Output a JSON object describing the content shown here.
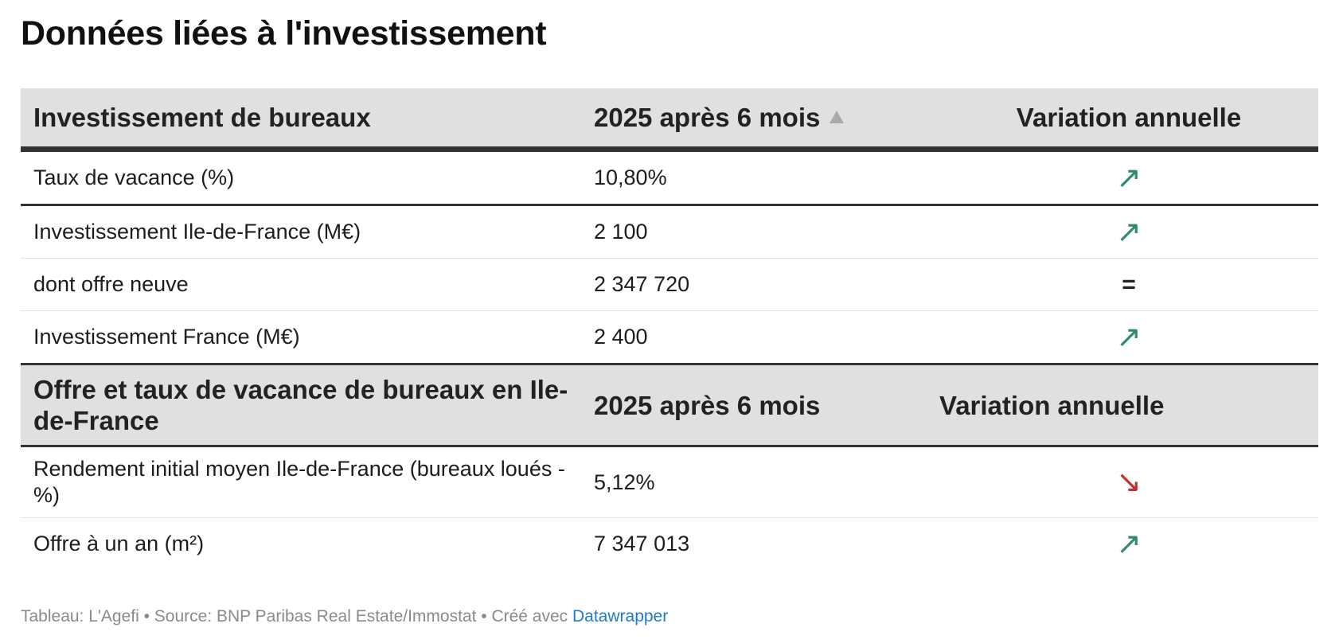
{
  "title": "Données liées à l'investissement",
  "header": {
    "col1": "Investissement de bureaux",
    "col2": "2025 après 6 mois",
    "col3": "Variation annuelle"
  },
  "rows_a": [
    {
      "label": "Taux de vacance (%)",
      "value": "10,80%",
      "trend": "↗"
    },
    {
      "label": "Investissement Ile-de-France (M€)",
      "value": "2 100",
      "trend": "↗"
    },
    {
      "label": "dont offre neuve",
      "value": "2 347 720",
      "trend": "="
    },
    {
      "label": "Investissement France (M€)",
      "value": "2 400",
      "trend": "↗"
    }
  ],
  "subheader": {
    "col1": "Offre et taux de vacance de bureaux en Ile-de-France",
    "col2": "2025 après 6 mois",
    "col3": "Variation annuelle"
  },
  "rows_b": [
    {
      "label": "Rendement initial moyen Ile-de-France (bureaux loués - %)",
      "value": "5,12%",
      "trend": "↘"
    },
    {
      "label": "Offre à un an (m²)",
      "value": "7 347 013",
      "trend": "↗"
    }
  ],
  "colors": {
    "up": "#2e8b67",
    "down": "#c0312b",
    "link": "#1f7acb"
  },
  "footer": {
    "prefix": "Tableau: L'Agefi • Source: BNP Paribas Real Estate/Immostat • Créé avec ",
    "link": "Datawrapper"
  }
}
